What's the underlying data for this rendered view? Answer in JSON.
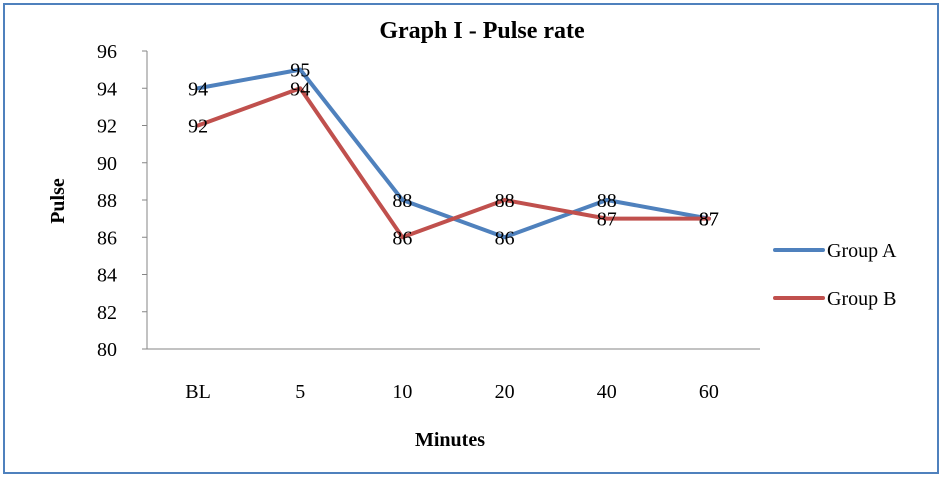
{
  "chart_data": {
    "type": "line",
    "title": "Graph I - Pulse rate",
    "xlabel": "Minutes",
    "ylabel": "Pulse",
    "categories": [
      "BL",
      "5",
      "10",
      "20",
      "40",
      "60"
    ],
    "ylim": [
      80,
      96
    ],
    "yticks": [
      "80",
      "82",
      "84",
      "86",
      "88",
      "90",
      "92",
      "94",
      "96"
    ],
    "grid": false,
    "legend_position": "right",
    "series": [
      {
        "name": "Group A",
        "color": "#4f81bd",
        "values": [
          94,
          95,
          88,
          86,
          88,
          87
        ],
        "labels": [
          "94",
          "95",
          "88",
          "86",
          "88",
          "87"
        ]
      },
      {
        "name": "Group B",
        "color": "#c0504d",
        "values": [
          92,
          94,
          86,
          88,
          87,
          87
        ],
        "labels": [
          "92",
          "94",
          "86",
          "88",
          "87",
          "87"
        ]
      }
    ]
  }
}
